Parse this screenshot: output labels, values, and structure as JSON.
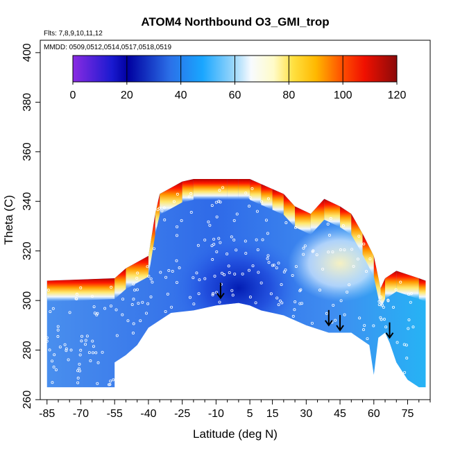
{
  "chart_data": {
    "type": "heatmap",
    "title": "ATOM4 Northbound O3_GMI_trop",
    "flights_note": "Flts: 7,8,9,10,11,12",
    "dates_note": "MMDD: 0509,0512,0514,0517,0518,0519",
    "xlabel": "Latitude (deg N)",
    "ylabel": "Theta (C)",
    "xlim": [
      -88,
      85
    ],
    "ylim": [
      260,
      405
    ],
    "x_ticks": [
      -85,
      -70,
      -55,
      -40,
      -25,
      -10,
      5,
      15,
      30,
      45,
      60,
      75
    ],
    "y_ticks": [
      260,
      280,
      300,
      320,
      340,
      360,
      380,
      400
    ],
    "colorbar": {
      "min": 0,
      "max": 120,
      "ticks": [
        0,
        20,
        40,
        60,
        80,
        100,
        120
      ],
      "colors": [
        "#8a2be2",
        "#00008b",
        "#0000cd",
        "#3a6ee8",
        "#1e90ff",
        "#00bfff",
        "#87cefa",
        "#ffffff",
        "#fffacd",
        "#ffd700",
        "#ffa500",
        "#ff0000",
        "#8b0000"
      ]
    },
    "field": {
      "upper_boundary": [
        [
          -85,
          308
        ],
        [
          -55,
          309
        ],
        [
          -50,
          313
        ],
        [
          -40,
          318
        ],
        [
          -37,
          335
        ],
        [
          -35,
          343
        ],
        [
          -25,
          348
        ],
        [
          -20,
          349
        ],
        [
          -5,
          349
        ],
        [
          0,
          349
        ],
        [
          5,
          349
        ],
        [
          10,
          347
        ],
        [
          15,
          345
        ],
        [
          20,
          343
        ],
        [
          25,
          338
        ],
        [
          32,
          335
        ],
        [
          38,
          341
        ],
        [
          45,
          338
        ],
        [
          50,
          335
        ],
        [
          55,
          327
        ],
        [
          60,
          318
        ],
        [
          63,
          305
        ],
        [
          65,
          309
        ],
        [
          70,
          312
        ],
        [
          80,
          309
        ],
        [
          83,
          308
        ]
      ],
      "lower_boundary": [
        [
          -85,
          265
        ],
        [
          -55,
          265
        ],
        [
          -55,
          275
        ],
        [
          -50,
          278
        ],
        [
          -45,
          282
        ],
        [
          -40,
          289
        ],
        [
          -30,
          295
        ],
        [
          -20,
          296
        ],
        [
          -10,
          298
        ],
        [
          0,
          299
        ],
        [
          5,
          298
        ],
        [
          10,
          296
        ],
        [
          20,
          294
        ],
        [
          30,
          290
        ],
        [
          40,
          287
        ],
        [
          50,
          287
        ],
        [
          58,
          282
        ],
        [
          60,
          270
        ],
        [
          62,
          285
        ],
        [
          65,
          287
        ],
        [
          67,
          283
        ],
        [
          70,
          275
        ],
        [
          75,
          268
        ],
        [
          80,
          265
        ],
        [
          83,
          265
        ]
      ],
      "upper_band_value": 95,
      "interior_value": 40,
      "low_core": {
        "lat": 0,
        "theta": 305,
        "value": 15
      },
      "high_interior_patch": {
        "lat": 45,
        "theta": 315,
        "value": 65
      }
    },
    "arrows": [
      {
        "lat": -8,
        "theta": 301
      },
      {
        "lat": 40,
        "theta": 290
      },
      {
        "lat": 45,
        "theta": 288
      },
      {
        "lat": 67,
        "theta": 285
      }
    ]
  }
}
